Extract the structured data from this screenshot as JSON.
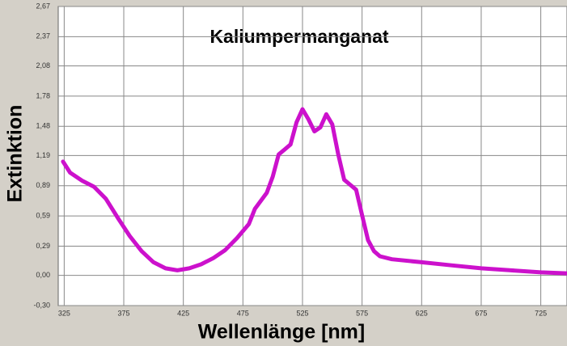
{
  "chart_data": {
    "type": "line",
    "title": "Kaliumpermanganat",
    "x_label": "Wellenlänge [nm]",
    "y_label": "Extinktion",
    "x": [
      324,
      330,
      340,
      350,
      360,
      370,
      380,
      390,
      400,
      410,
      420,
      430,
      440,
      450,
      460,
      470,
      480,
      485,
      495,
      500,
      505,
      510,
      515,
      520,
      525,
      530,
      535,
      540,
      545,
      550,
      555,
      560,
      565,
      570,
      575,
      580,
      585,
      590,
      600,
      625,
      650,
      675,
      700,
      725,
      747
    ],
    "series": [
      {
        "color": "#cc11cc",
        "values": [
          1.13,
          1.02,
          0.94,
          0.88,
          0.76,
          0.57,
          0.39,
          0.24,
          0.13,
          0.07,
          0.05,
          0.07,
          0.11,
          0.17,
          0.25,
          0.37,
          0.51,
          0.66,
          0.82,
          0.98,
          1.2,
          1.25,
          1.3,
          1.52,
          1.65,
          1.55,
          1.43,
          1.47,
          1.6,
          1.5,
          1.2,
          0.95,
          0.9,
          0.85,
          0.6,
          0.35,
          0.24,
          0.19,
          0.16,
          0.13,
          0.1,
          0.07,
          0.05,
          0.03,
          0.02
        ]
      }
    ],
    "xlim": [
      320,
      747
    ],
    "xticks": [
      325,
      375,
      425,
      475,
      525,
      575,
      625,
      675,
      725
    ],
    "ylim": [
      -0.3,
      2.67
    ],
    "yticks": [
      {
        "value": 2.67,
        "label": "2,67"
      },
      {
        "value": 2.37,
        "label": "2,37"
      },
      {
        "value": 2.08,
        "label": "2,08"
      },
      {
        "value": 1.78,
        "label": "1,78"
      },
      {
        "value": 1.48,
        "label": "1,48"
      },
      {
        "value": 1.19,
        "label": "1,19"
      },
      {
        "value": 0.89,
        "label": "0,89"
      },
      {
        "value": 0.59,
        "label": "0,59"
      },
      {
        "value": 0.29,
        "label": "0,29"
      },
      {
        "value": 0.0,
        "label": "0,00"
      },
      {
        "value": -0.3,
        "label": "-0,30"
      }
    ],
    "grid": true
  }
}
